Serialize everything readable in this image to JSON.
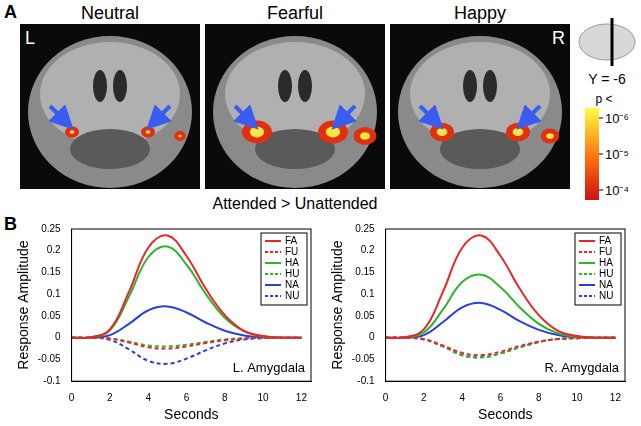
{
  "panel_a": {
    "label": "A",
    "images": [
      {
        "title": "Neutral"
      },
      {
        "title": "Fearful"
      },
      {
        "title": "Happy"
      }
    ],
    "left_label": "L",
    "right_label": "R",
    "caption": "Attended > Unattended",
    "slice": "Y = -6",
    "colorbar": {
      "title": "p <",
      "ticks": [
        {
          "value": 1e-06,
          "label": "10⁻⁶"
        },
        {
          "value": 1e-05,
          "label": "10⁻⁵"
        },
        {
          "value": 0.0001,
          "label": "10⁻⁴"
        }
      ]
    }
  },
  "panel_b": {
    "label": "B"
  },
  "chart_data": [
    {
      "type": "line",
      "annotation": "L. Amygdala",
      "x_label": "Seconds",
      "y_label": "Response Amplitude",
      "x": [
        0,
        1,
        2,
        3,
        4,
        5,
        6,
        7,
        8,
        9,
        10,
        11,
        12
      ],
      "xlim": [
        0,
        12.5
      ],
      "xticks": [
        0,
        2,
        4,
        6,
        8,
        10,
        12
      ],
      "ylim": [
        -0.1,
        0.25
      ],
      "yticks": [
        -0.1,
        -0.05,
        0,
        0.05,
        0.1,
        0.15,
        0.2,
        0.25
      ],
      "grid": false,
      "legend": "upper right",
      "series": [
        {
          "name": "FA",
          "color": "#e8262b",
          "line_style": "solid",
          "values": [
            0,
            0.001,
            0.019,
            0.106,
            0.207,
            0.235,
            0.188,
            0.113,
            0.052,
            0.016,
            0.004,
            0,
            0
          ]
        },
        {
          "name": "FU",
          "color": "#e8262b",
          "line_style": "dashed",
          "values": [
            0,
            0,
            -0.002,
            -0.011,
            -0.022,
            -0.025,
            -0.02,
            -0.012,
            -0.006,
            -0.002,
            0,
            0,
            0
          ]
        },
        {
          "name": "HA",
          "color": "#2bb52b",
          "line_style": "solid",
          "values": [
            0,
            0.001,
            0.017,
            0.095,
            0.185,
            0.21,
            0.168,
            0.101,
            0.046,
            0.015,
            0.003,
            0,
            0
          ]
        },
        {
          "name": "HU",
          "color": "#2bb52b",
          "line_style": "dashed",
          "values": [
            0,
            0,
            -0.002,
            -0.009,
            -0.018,
            -0.02,
            -0.016,
            -0.01,
            -0.004,
            -0.001,
            0,
            0,
            0
          ]
        },
        {
          "name": "NA",
          "color": "#2b3fd6",
          "line_style": "solid",
          "values": [
            0,
            0,
            0.006,
            0.032,
            0.063,
            0.072,
            0.058,
            0.035,
            0.016,
            0.005,
            0.001,
            0,
            0
          ]
        },
        {
          "name": "NU",
          "color": "#2b3fd6",
          "line_style": "dashed",
          "values": [
            0,
            0,
            -0.005,
            -0.027,
            -0.053,
            -0.06,
            -0.048,
            -0.029,
            -0.013,
            -0.004,
            -0.001,
            0,
            0
          ]
        }
      ]
    },
    {
      "type": "line",
      "annotation": "R. Amygdala",
      "x_label": "Seconds",
      "y_label": "Response Amplitude",
      "x": [
        0,
        1,
        2,
        3,
        4,
        5,
        6,
        7,
        8,
        9,
        10,
        11,
        12
      ],
      "xlim": [
        0,
        12.5
      ],
      "xticks": [
        0,
        2,
        4,
        6,
        8,
        10,
        12
      ],
      "ylim": [
        -0.1,
        0.25
      ],
      "yticks": [
        -0.1,
        -0.05,
        0,
        0.05,
        0.1,
        0.15,
        0.2,
        0.25
      ],
      "grid": false,
      "legend": "upper right",
      "series": [
        {
          "name": "FA",
          "color": "#e8262b",
          "line_style": "solid",
          "values": [
            0,
            0.001,
            0.019,
            0.106,
            0.207,
            0.235,
            0.188,
            0.113,
            0.052,
            0.016,
            0.004,
            0,
            0
          ]
        },
        {
          "name": "FU",
          "color": "#e8262b",
          "line_style": "dashed",
          "values": [
            0,
            0,
            -0.003,
            -0.018,
            -0.035,
            -0.04,
            -0.032,
            -0.019,
            -0.009,
            -0.003,
            -0.001,
            0,
            0
          ]
        },
        {
          "name": "HA",
          "color": "#2bb52b",
          "line_style": "solid",
          "values": [
            0,
            0.001,
            0.012,
            0.065,
            0.128,
            0.145,
            0.116,
            0.07,
            0.032,
            0.01,
            0.002,
            0,
            0
          ]
        },
        {
          "name": "HU",
          "color": "#2bb52b",
          "line_style": "dashed",
          "values": [
            0,
            0,
            -0.004,
            -0.02,
            -0.04,
            -0.045,
            -0.036,
            -0.022,
            -0.01,
            -0.003,
            -0.001,
            0,
            0
          ]
        },
        {
          "name": "NA",
          "color": "#2b3fd6",
          "line_style": "solid",
          "values": [
            0,
            0,
            0.006,
            0.036,
            0.07,
            0.08,
            0.064,
            0.038,
            0.018,
            0.006,
            0.001,
            0,
            0
          ]
        },
        {
          "name": "NU",
          "color": "#2b3fd6",
          "line_style": "dashed",
          "values": [
            0,
            0,
            -0.004,
            -0.02,
            -0.04,
            -0.045,
            -0.036,
            -0.022,
            -0.01,
            -0.003,
            -0.001,
            0,
            0
          ]
        }
      ]
    }
  ]
}
